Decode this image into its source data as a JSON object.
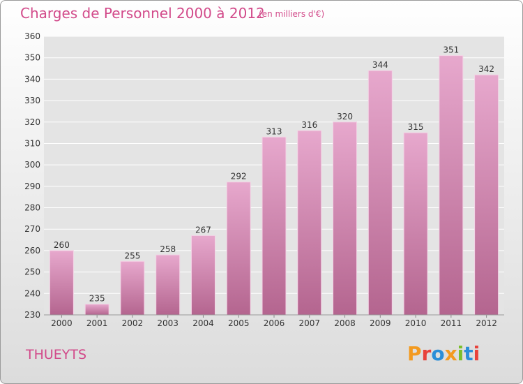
{
  "header": {
    "title": "Charges de Personnel 2000 à 2012",
    "subtitle": "(en milliers d'€)"
  },
  "footer": {
    "commune": "THUEYTS",
    "logo_text": "Proxiti",
    "logo_colors": [
      "#f39a1f",
      "#e8423b",
      "#2b8ed8",
      "#f39a1f",
      "#7bbf2a",
      "#2b8ed8",
      "#e8423b"
    ]
  },
  "colors": {
    "bar_top": "#e7a8cd",
    "bar_bottom": "#b4658f",
    "grid": "#ffffff",
    "plot_bg": "#e4e4e4",
    "text": "#333333",
    "accent": "#d24a8a"
  },
  "chart_data": {
    "type": "bar",
    "title": "Charges de Personnel 2000 à 2012",
    "subtitle": "(en milliers d'€)",
    "xlabel": "",
    "ylabel": "",
    "categories": [
      "2000",
      "2001",
      "2002",
      "2003",
      "2004",
      "2005",
      "2006",
      "2007",
      "2008",
      "2009",
      "2010",
      "2011",
      "2012"
    ],
    "values": [
      260,
      235,
      255,
      258,
      267,
      292,
      313,
      316,
      320,
      344,
      315,
      351,
      342
    ],
    "ylim": [
      230,
      360
    ],
    "yticks": [
      230,
      240,
      250,
      260,
      270,
      280,
      290,
      300,
      310,
      320,
      330,
      340,
      350,
      360
    ],
    "grid": true,
    "data_labels": true
  }
}
